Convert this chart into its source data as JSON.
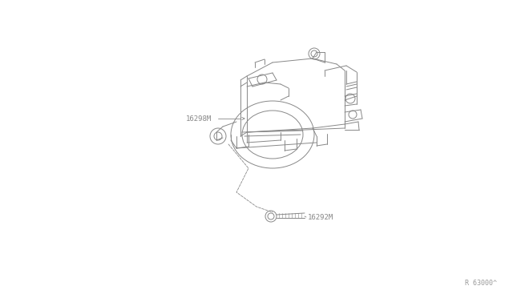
{
  "bg_color": "#ffffff",
  "line_color": "#888888",
  "label_color": "#888888",
  "ref_color": "#999999",
  "part_label_16298M": "16298M",
  "part_label_16292M": "16292M",
  "ref_code": "R 63000^",
  "font_size_parts": 6.5,
  "font_size_ref": 6
}
